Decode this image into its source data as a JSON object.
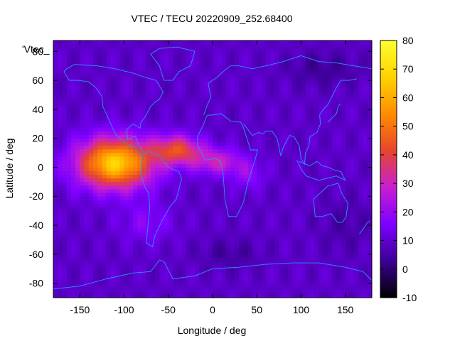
{
  "chart_data": {
    "type": "heatmap",
    "title": "VTEC / TECU 20220909_252.68400",
    "xlabel": "Longitude / deg",
    "ylabel": "Latitude / deg",
    "xlim": [
      -180,
      180
    ],
    "ylim": [
      -90,
      87.5
    ],
    "x_ticks": [
      -150,
      -100,
      -50,
      0,
      50,
      100,
      150
    ],
    "y_ticks": [
      -80,
      -60,
      -40,
      -20,
      0,
      20,
      40,
      60,
      80
    ],
    "colorbar": {
      "min": -10,
      "max": 80,
      "ticks": [
        -10,
        0,
        10,
        20,
        30,
        40,
        50,
        60,
        70,
        80
      ],
      "colormap": [
        "#000000",
        "#3c0096",
        "#7d00ff",
        "#c81ed2",
        "#e6462d",
        "#ff8c00",
        "#ffd200",
        "#ffff2e"
      ]
    },
    "key_label": "'Vtec_",
    "grid": false,
    "peak": {
      "lon": -110,
      "lat": 2,
      "value": 70
    },
    "coastline_color": "#2c90ff"
  }
}
